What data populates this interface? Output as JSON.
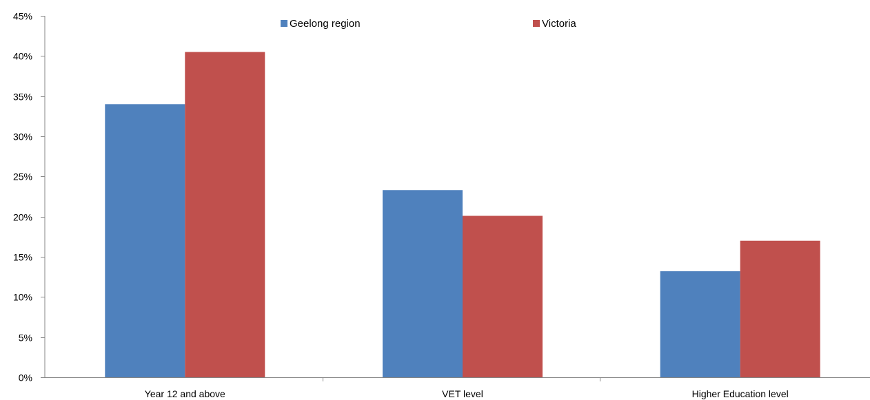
{
  "chart_data": {
    "type": "bar",
    "title": "",
    "xlabel": "",
    "ylabel": "",
    "categories": [
      "Year 12 and above",
      "VET level",
      "Higher Education level"
    ],
    "series": [
      {
        "name": "Geelong region",
        "color": "#4f81bd",
        "values": [
          34.0,
          23.3,
          13.2
        ]
      },
      {
        "name": "Victoria",
        "color": "#c0504d",
        "values": [
          40.5,
          20.1,
          17.0
        ]
      }
    ],
    "ylim": [
      0,
      45
    ],
    "yticks": [
      0,
      5,
      10,
      15,
      20,
      25,
      30,
      35,
      40,
      45
    ],
    "ytick_labels": [
      "0%",
      "5%",
      "10%",
      "15%",
      "20%",
      "25%",
      "30%",
      "35%",
      "40%",
      "45%"
    ],
    "grid": false,
    "legend_position": "top-center"
  }
}
